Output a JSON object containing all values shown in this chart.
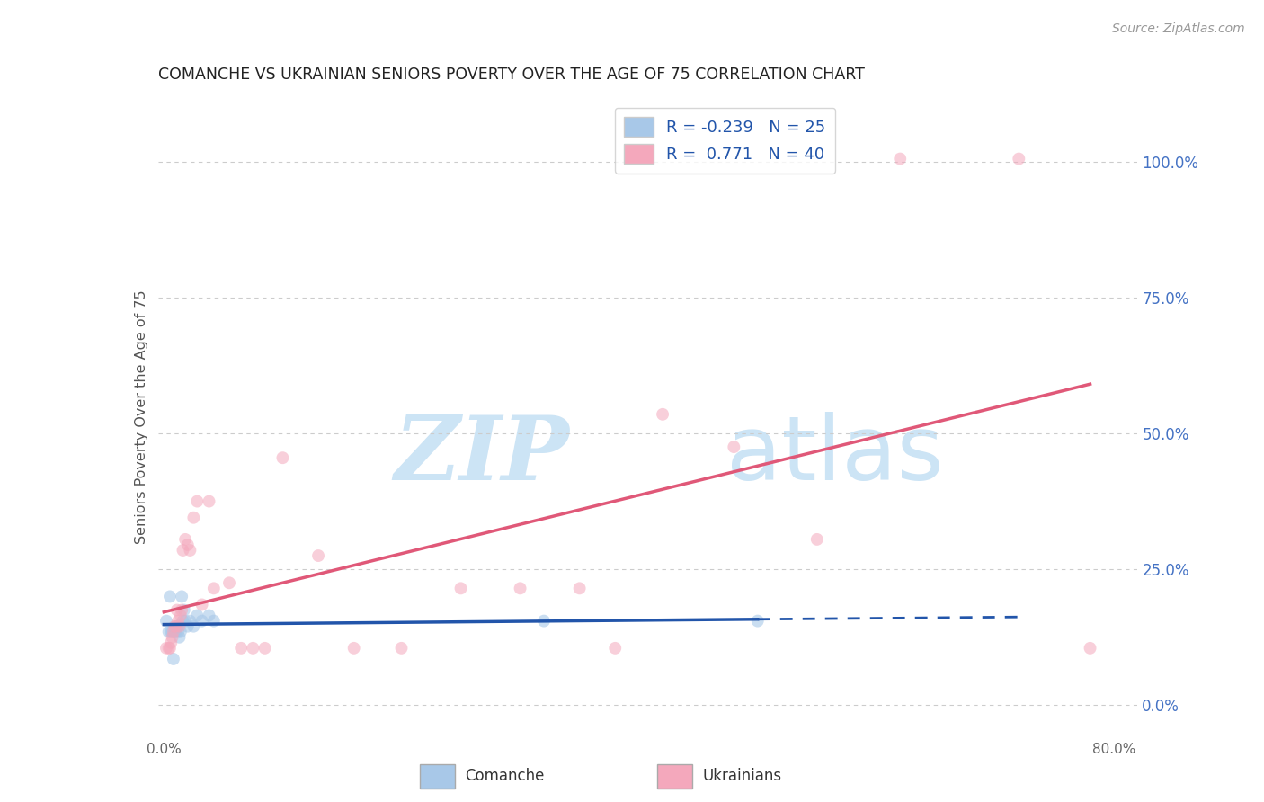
{
  "title": "COMANCHE VS UKRAINIAN SENIORS POVERTY OVER THE AGE OF 75 CORRELATION CHART",
  "source": "Source: ZipAtlas.com",
  "ylabel": "Seniors Poverty Over the Age of 75",
  "xlim": [
    -0.005,
    0.82
  ],
  "ylim": [
    -0.06,
    1.12
  ],
  "yticks_right": [
    0.0,
    0.25,
    0.5,
    0.75,
    1.0
  ],
  "ytick_right_labels": [
    "0.0%",
    "25.0%",
    "50.0%",
    "75.0%",
    "100.0%"
  ],
  "grid_color": "#cccccc",
  "background_color": "#ffffff",
  "watermark_zip": "ZIP",
  "watermark_atlas": "atlas",
  "watermark_color": "#cce4f5",
  "comanche_color": "#a8c8e8",
  "ukrainian_color": "#f4a8bc",
  "comanche_line_color": "#2255aa",
  "ukrainian_line_color": "#e05878",
  "legend_R1": "-0.239",
  "legend_N1": "25",
  "legend_R2": " 0.771",
  "legend_N2": "40",
  "comanche_x": [
    0.002,
    0.004,
    0.005,
    0.006,
    0.007,
    0.008,
    0.009,
    0.01,
    0.011,
    0.012,
    0.013,
    0.014,
    0.015,
    0.016,
    0.017,
    0.018,
    0.02,
    0.022,
    0.025,
    0.028,
    0.032,
    0.038,
    0.042,
    0.32,
    0.5
  ],
  "comanche_y": [
    0.155,
    0.135,
    0.2,
    0.135,
    0.135,
    0.085,
    0.135,
    0.135,
    0.145,
    0.135,
    0.125,
    0.135,
    0.2,
    0.155,
    0.175,
    0.155,
    0.145,
    0.155,
    0.145,
    0.165,
    0.155,
    0.165,
    0.155,
    0.155,
    0.155
  ],
  "ukrainian_x": [
    0.002,
    0.004,
    0.005,
    0.006,
    0.007,
    0.008,
    0.009,
    0.01,
    0.011,
    0.012,
    0.013,
    0.014,
    0.015,
    0.016,
    0.018,
    0.02,
    0.022,
    0.025,
    0.028,
    0.032,
    0.038,
    0.042,
    0.055,
    0.065,
    0.075,
    0.085,
    0.1,
    0.13,
    0.16,
    0.2,
    0.25,
    0.3,
    0.35,
    0.38,
    0.42,
    0.48,
    0.55,
    0.62,
    0.72,
    0.78
  ],
  "ukrainian_y": [
    0.105,
    0.105,
    0.105,
    0.115,
    0.125,
    0.135,
    0.145,
    0.145,
    0.175,
    0.155,
    0.145,
    0.165,
    0.175,
    0.285,
    0.305,
    0.295,
    0.285,
    0.345,
    0.375,
    0.185,
    0.375,
    0.215,
    0.225,
    0.105,
    0.105,
    0.105,
    0.455,
    0.275,
    0.105,
    0.105,
    0.215,
    0.215,
    0.215,
    0.105,
    0.535,
    0.475,
    0.305,
    1.005,
    1.005,
    0.105
  ],
  "comanche_marker_size": 100,
  "ukrainian_marker_size": 100,
  "comanche_alpha": 0.6,
  "ukrainian_alpha": 0.55,
  "c_line_x_start": 0.0,
  "c_line_x_solid_end": 0.5,
  "c_line_x_dash_end": 0.72,
  "u_line_x_start": 0.0,
  "u_line_x_end": 0.78
}
